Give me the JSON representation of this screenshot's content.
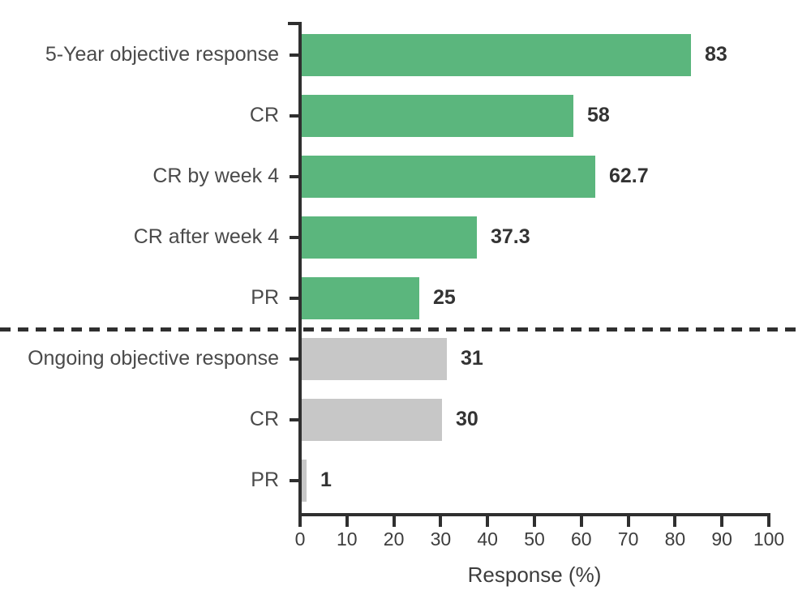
{
  "chart_data": {
    "type": "bar",
    "orientation": "horizontal",
    "title": "",
    "xlabel": "Response (%)",
    "ylabel": "",
    "xlim": [
      0,
      100
    ],
    "xticks": [
      0,
      10,
      20,
      30,
      40,
      50,
      60,
      70,
      80,
      90,
      100
    ],
    "grid": false,
    "legend": "none",
    "value_labels_shown": true,
    "axis_color": "#2f2f2f",
    "separator": {
      "present": true,
      "style": "dashed-horizontal-line",
      "position": "between-groups",
      "color": "#2f2f2f"
    },
    "groups": [
      {
        "name": "5-year-results",
        "color": "#5bb67d",
        "bars": [
          {
            "label": "5-Year objective response",
            "value": 83,
            "display": "83"
          },
          {
            "label": "CR",
            "value": 58,
            "display": "58"
          },
          {
            "label": "CR by week 4",
            "value": 62.7,
            "display": "62.7"
          },
          {
            "label": "CR after week 4",
            "value": 37.3,
            "display": "37.3"
          },
          {
            "label": "PR",
            "value": 25,
            "display": "25"
          }
        ]
      },
      {
        "name": "ongoing-results",
        "color": "#c7c7c7",
        "bars": [
          {
            "label": "Ongoing objective response",
            "value": 31,
            "display": "31"
          },
          {
            "label": "CR",
            "value": 30,
            "display": "30"
          },
          {
            "label": "PR",
            "value": 1,
            "display": "1"
          }
        ]
      }
    ]
  }
}
